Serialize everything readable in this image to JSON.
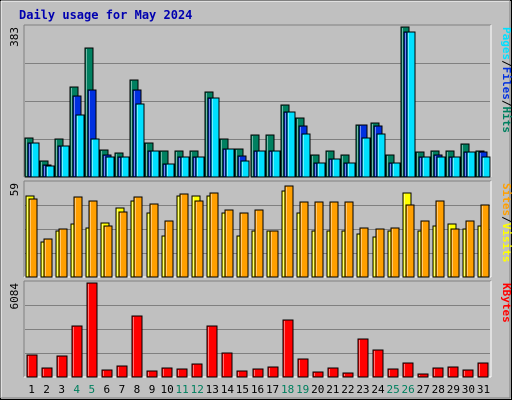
{
  "chart_data": {
    "type": "bar",
    "title": "Daily usage for May 2024",
    "days": [
      "1",
      "2",
      "3",
      "4",
      "5",
      "6",
      "7",
      "8",
      "9",
      "10",
      "11",
      "12",
      "13",
      "14",
      "15",
      "16",
      "17",
      "18",
      "19",
      "20",
      "21",
      "22",
      "23",
      "24",
      "25",
      "26",
      "27",
      "28",
      "29",
      "30",
      "31"
    ],
    "weekend_days": [
      "4",
      "5",
      "11",
      "12",
      "18",
      "19",
      "25",
      "26"
    ],
    "panels": [
      {
        "max_label": "383",
        "ylim": [
          0,
          383
        ],
        "legend": [
          "Pages",
          "/",
          "Files",
          "/",
          "Hits"
        ],
        "series": [
          {
            "name": "Hits",
            "color": "#008060",
            "values": [
              100,
              40,
              96,
              230,
              330,
              69,
              62,
              247,
              88,
              67,
              67,
              67,
              216,
              96,
              72,
              106,
              106,
              184,
              150,
              55,
              67,
              55,
              133,
              137,
              55,
              383,
              65,
              67,
              67,
              84,
              67
            ]
          },
          {
            "name": "Files",
            "color": "#0030e0",
            "values": [
              86,
              31,
              80,
              207,
              222,
              56,
              52,
              221,
              67,
              34,
              52,
              52,
              202,
              71,
              54,
              67,
              67,
              166,
              130,
              35,
              45,
              35,
              133,
              130,
              35,
              370,
              52,
              55,
              52,
              64,
              63
            ]
          },
          {
            "name": "Pages",
            "color": "#00e0ff",
            "values": [
              86,
              27,
              80,
              159,
              96,
              52,
              52,
              186,
              67,
              34,
              52,
              52,
              202,
              71,
              40,
              67,
              67,
              166,
              110,
              35,
              45,
              35,
              100,
              110,
              35,
              370,
              52,
              52,
              52,
              64,
              52
            ]
          }
        ]
      },
      {
        "max_label": "59",
        "ylim": [
          0,
          59
        ],
        "legend": [
          "Sites",
          "/",
          "Visits"
        ],
        "series": [
          {
            "name": "Visits",
            "color": "#ffff00",
            "values": [
              51,
              22,
              29,
              33,
              31,
              34,
              43,
              48,
              40,
              26,
              51,
              51,
              51,
              40,
              26,
              29,
              29,
              54,
              40,
              29,
              29,
              29,
              27,
              25,
              29,
              53,
              29,
              32,
              33,
              30,
              32
            ]
          },
          {
            "name": "Sites",
            "color": "#ff9f00",
            "values": [
              49,
              24,
              30,
              50,
              48,
              32,
              41,
              50,
              46,
              35,
              52,
              48,
              53,
              42,
              40,
              42,
              29,
              57,
              47,
              47,
              47,
              47,
              31,
              30,
              31,
              45,
              35,
              48,
              30,
              35,
              45
            ]
          }
        ]
      },
      {
        "max_label": "6084",
        "ylim": [
          0,
          6084
        ],
        "legend": [
          "KBytes"
        ],
        "series": [
          {
            "name": "KBytes",
            "color": "#ff0000",
            "values": [
              1430,
              570,
              1350,
              3270,
              6084,
              470,
              730,
              3960,
              370,
              590,
              520,
              870,
              3300,
              1560,
              390,
              490,
              670,
              3680,
              1190,
              350,
              560,
              290,
              2450,
              1770,
              500,
              920,
              220,
              610,
              620,
              440,
              880
            ]
          }
        ]
      }
    ]
  }
}
